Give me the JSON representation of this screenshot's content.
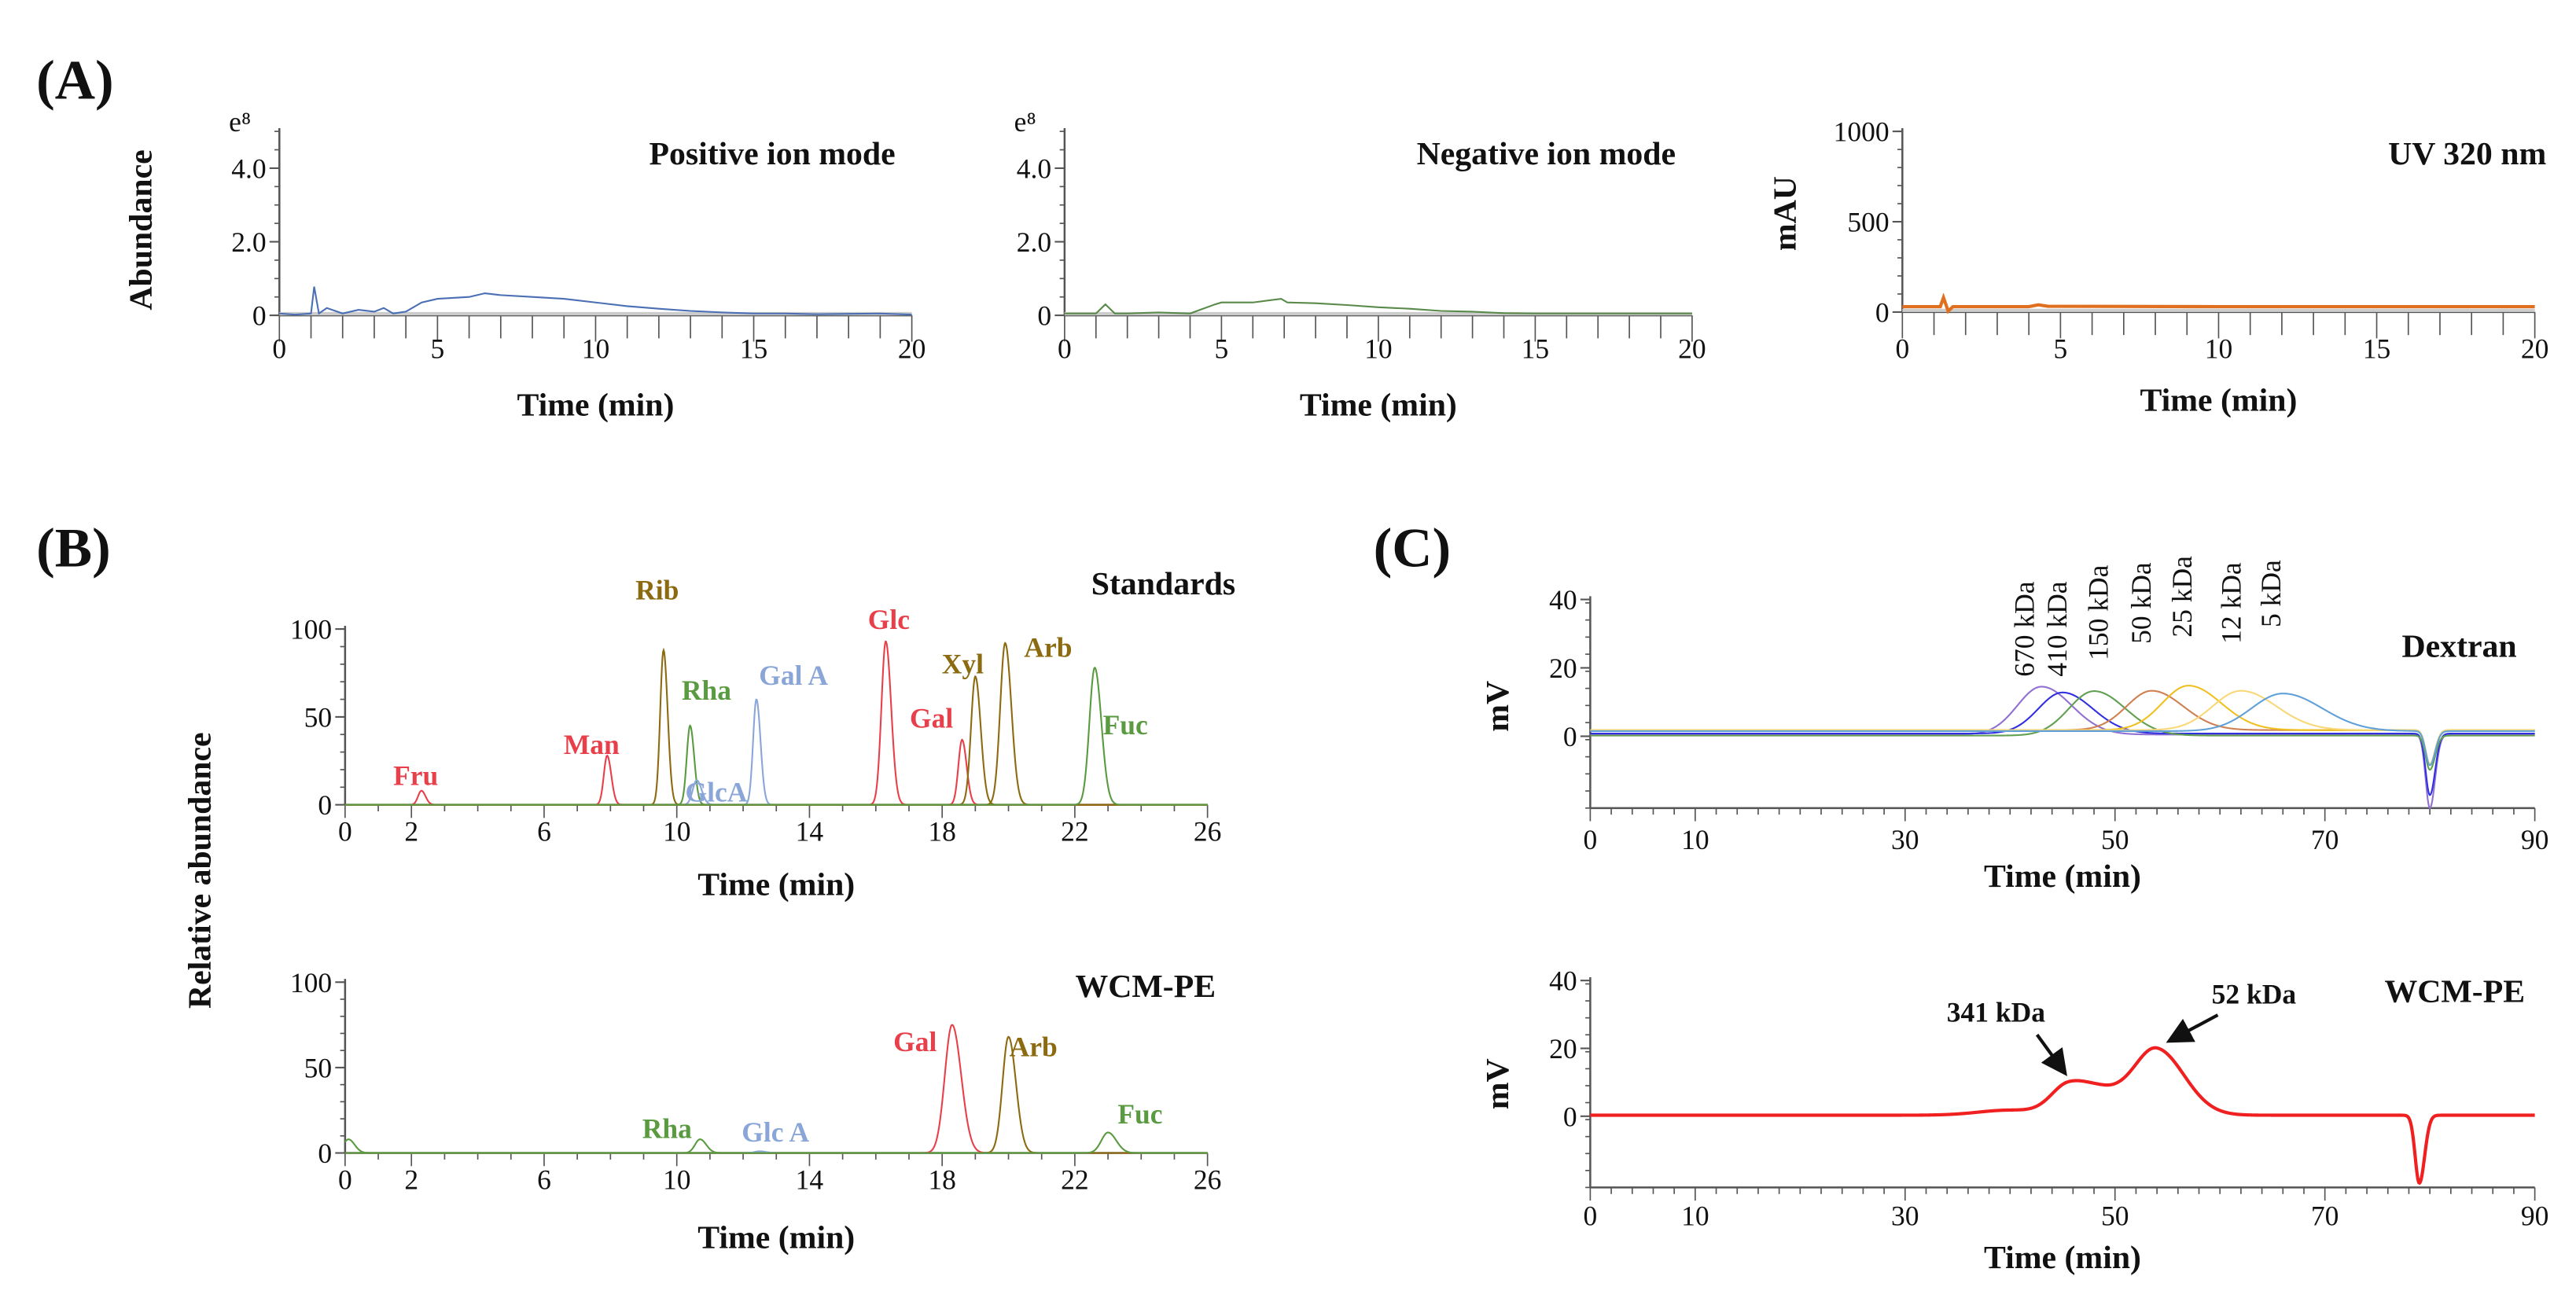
{
  "panel_labels": {
    "A": "(A)",
    "B": "(B)",
    "C": "(C)"
  },
  "chart_data": [
    {
      "id": "A1",
      "type": "line",
      "title": "Positive ion mode",
      "xlabel": "Time (min)",
      "ylabel": "Abundance",
      "y_multiplier": "e⁸",
      "xlim": [
        0,
        20
      ],
      "ylim": [
        0,
        5
      ],
      "xticks": [
        0,
        5,
        10,
        15,
        20
      ],
      "yticks": [
        0,
        2,
        4
      ],
      "ytick_labels": [
        "0",
        "2.0",
        "4.0"
      ],
      "grid": false,
      "series": [
        {
          "name": "Positive ion",
          "color": "#4a6fb5",
          "points": [
            [
              0,
              0.05
            ],
            [
              0.5,
              0.02
            ],
            [
              1.0,
              0.05
            ],
            [
              1.1,
              0.78
            ],
            [
              1.25,
              0.05
            ],
            [
              1.5,
              0.2
            ],
            [
              2,
              0.05
            ],
            [
              2.5,
              0.15
            ],
            [
              3,
              0.1
            ],
            [
              3.3,
              0.2
            ],
            [
              3.6,
              0.05
            ],
            [
              4,
              0.1
            ],
            [
              4.5,
              0.35
            ],
            [
              5,
              0.45
            ],
            [
              6,
              0.5
            ],
            [
              6.5,
              0.6
            ],
            [
              7,
              0.55
            ],
            [
              8,
              0.5
            ],
            [
              9,
              0.45
            ],
            [
              10,
              0.35
            ],
            [
              11,
              0.25
            ],
            [
              12,
              0.18
            ],
            [
              13,
              0.12
            ],
            [
              14,
              0.08
            ],
            [
              15,
              0.05
            ],
            [
              16,
              0.05
            ],
            [
              17,
              0.03
            ],
            [
              18,
              0.04
            ],
            [
              19,
              0.05
            ],
            [
              20,
              0.02
            ]
          ]
        }
      ]
    },
    {
      "id": "A2",
      "type": "line",
      "title": "Negative ion mode",
      "xlabel": "Time (min)",
      "ylabel": "",
      "y_multiplier": "e⁸",
      "xlim": [
        0,
        20
      ],
      "ylim": [
        0,
        5
      ],
      "xticks": [
        0,
        5,
        10,
        15,
        20
      ],
      "yticks": [
        0,
        2,
        4
      ],
      "ytick_labels": [
        "0",
        "2.0",
        "4.0"
      ],
      "grid": false,
      "series": [
        {
          "name": "Negative ion",
          "color": "#5a8a4a",
          "points": [
            [
              0,
              0.05
            ],
            [
              1.0,
              0.05
            ],
            [
              1.3,
              0.3
            ],
            [
              1.6,
              0.05
            ],
            [
              2,
              0.05
            ],
            [
              3,
              0.08
            ],
            [
              4,
              0.05
            ],
            [
              4.8,
              0.3
            ],
            [
              5,
              0.35
            ],
            [
              6,
              0.35
            ],
            [
              6.9,
              0.45
            ],
            [
              7.1,
              0.35
            ],
            [
              8,
              0.33
            ],
            [
              9,
              0.28
            ],
            [
              10,
              0.22
            ],
            [
              11,
              0.18
            ],
            [
              12,
              0.12
            ],
            [
              13,
              0.1
            ],
            [
              14,
              0.06
            ],
            [
              15,
              0.05
            ],
            [
              20,
              0.05
            ]
          ]
        }
      ]
    },
    {
      "id": "A3",
      "type": "line",
      "title": "UV 320 nm",
      "xlabel": "Time (min)",
      "ylabel": "mAU",
      "xlim": [
        0,
        20
      ],
      "ylim": [
        0,
        1000
      ],
      "xticks": [
        0,
        5,
        10,
        15,
        20
      ],
      "yticks": [
        0,
        500,
        1000
      ],
      "ytick_labels": [
        "0",
        "500",
        "1000"
      ],
      "grid": false,
      "series": [
        {
          "name": "UV 320 nm",
          "color": "#e07020",
          "points": [
            [
              0,
              30
            ],
            [
              1.2,
              30
            ],
            [
              1.3,
              80
            ],
            [
              1.45,
              5
            ],
            [
              1.6,
              30
            ],
            [
              4,
              30
            ],
            [
              4.3,
              40
            ],
            [
              4.6,
              32
            ],
            [
              10,
              30
            ],
            [
              20,
              30
            ]
          ]
        }
      ]
    },
    {
      "id": "B1",
      "type": "line",
      "title": "Standards",
      "xlabel": "Time (min)",
      "ylabel": "Relative abundance",
      "xlim": [
        0,
        26
      ],
      "ylim": [
        0,
        100
      ],
      "xticks": [
        0,
        2,
        6,
        10,
        14,
        18,
        22,
        26
      ],
      "yticks": [
        0,
        50,
        100
      ],
      "ytick_labels": [
        "0",
        "50",
        "100"
      ],
      "grid": false,
      "series": [
        {
          "label": "Fru",
          "color": "#e8404a",
          "peaks": [
            {
              "center": 2.3,
              "height": 8,
              "sigma": 0.1
            }
          ]
        },
        {
          "label": "Man",
          "color": "#e8404a",
          "peaks": [
            {
              "center": 7.9,
              "height": 28,
              "sigma": 0.1
            }
          ]
        },
        {
          "label": "Rib",
          "color": "#8b6a10",
          "peaks": [
            {
              "center": 9.6,
              "height": 88,
              "sigma": 0.1
            }
          ]
        },
        {
          "label": "Rha",
          "color": "#5a9a40",
          "peaks": [
            {
              "center": 10.4,
              "height": 45,
              "sigma": 0.1
            }
          ]
        },
        {
          "label": "GlcA",
          "color": "#8aa6d8",
          "peaks": [
            {
              "center": 10.6,
              "height": 14,
              "sigma": 0.12
            }
          ]
        },
        {
          "label": "Gal A",
          "color": "#8aa6d8",
          "peaks": [
            {
              "center": 12.4,
              "height": 60,
              "sigma": 0.1
            }
          ]
        },
        {
          "label": "Glc",
          "color": "#e8404a",
          "peaks": [
            {
              "center": 16.3,
              "height": 93,
              "sigma": 0.13
            }
          ]
        },
        {
          "label": "Gal",
          "color": "#e8404a",
          "peaks": [
            {
              "center": 18.6,
              "height": 37,
              "sigma": 0.11
            }
          ]
        },
        {
          "label": "Xyl",
          "color": "#8b6a10",
          "peaks": [
            {
              "center": 19.0,
              "height": 73,
              "sigma": 0.13
            }
          ]
        },
        {
          "label": "Arb",
          "color": "#8b6a10",
          "peaks": [
            {
              "center": 19.9,
              "height": 92,
              "sigma": 0.15
            }
          ]
        },
        {
          "label": "Fuc",
          "color": "#5a9a40",
          "peaks": [
            {
              "center": 22.6,
              "height": 78,
              "sigma": 0.16
            }
          ]
        }
      ]
    },
    {
      "id": "B2",
      "type": "line",
      "title": "WCM-PE",
      "xlabel": "Time (min)",
      "ylabel": "",
      "xlim": [
        0,
        26
      ],
      "ylim": [
        0,
        100
      ],
      "xticks": [
        0,
        2,
        6,
        10,
        14,
        18,
        22,
        26
      ],
      "yticks": [
        0,
        50,
        100
      ],
      "ytick_labels": [
        "0",
        "50",
        "100"
      ],
      "grid": false,
      "series": [
        {
          "label": "Rha",
          "color": "#5a9a40",
          "peaks": [
            {
              "center": 0.1,
              "height": 8,
              "sigma": 0.15
            },
            {
              "center": 10.7,
              "height": 8,
              "sigma": 0.15
            }
          ]
        },
        {
          "label": "Glc A",
          "color": "#8aa6d8",
          "peaks": [
            {
              "center": 12.5,
              "height": 1,
              "sigma": 0.15
            }
          ]
        },
        {
          "label": "Gal",
          "color": "#e8404a",
          "peaks": [
            {
              "center": 18.3,
              "height": 75,
              "sigma": 0.22
            }
          ]
        },
        {
          "label": "Arb",
          "color": "#8b6a10",
          "peaks": [
            {
              "center": 20.0,
              "height": 68,
              "sigma": 0.18
            }
          ]
        },
        {
          "label": "Fuc",
          "color": "#5a9a40",
          "peaks": [
            {
              "center": 23.0,
              "height": 12,
              "sigma": 0.2
            }
          ]
        }
      ]
    },
    {
      "id": "C1",
      "type": "line",
      "title": "Dextran",
      "xlabel": "Time (min)",
      "ylabel": "mV",
      "xlim": [
        0,
        90
      ],
      "ylim": [
        -21,
        40
      ],
      "xticks": [
        0,
        10,
        30,
        50,
        70,
        90
      ],
      "yticks": [
        0,
        20,
        40
      ],
      "ytick_labels": [
        "0",
        "20",
        "40"
      ],
      "grid": false,
      "series": [
        {
          "label": "670 kDa",
          "color": "#9070d0",
          "baseline": 0.5,
          "peaks": [
            {
              "center": 43,
              "height": 14,
              "sigma": 2.3
            },
            {
              "center": 80,
              "height": -21.5,
              "sigma": 0.4
            }
          ]
        },
        {
          "label": "410 kDa",
          "color": "#3030e0",
          "baseline": 0.8,
          "peaks": [
            {
              "center": 45,
              "height": 12,
              "sigma": 2.3
            },
            {
              "center": 80,
              "height": -18,
              "sigma": 0.4
            }
          ]
        },
        {
          "label": "150 kDa",
          "color": "#60a050",
          "baseline": 0.2,
          "peaks": [
            {
              "center": 48,
              "height": 13,
              "sigma": 2.4
            },
            {
              "center": 80,
              "height": -10,
              "sigma": 0.4
            }
          ]
        },
        {
          "label": "50 kDa",
          "color": "#d08050",
          "baseline": 1.8,
          "peaks": [
            {
              "center": 53.5,
              "height": 11.5,
              "sigma": 2.4
            },
            {
              "center": 80,
              "height": -10,
              "sigma": 0.4
            }
          ]
        },
        {
          "label": "25 kDa",
          "color": "#f0c020",
          "baseline": 1.8,
          "peaks": [
            {
              "center": 57,
              "height": 13,
              "sigma": 2.5
            },
            {
              "center": 80,
              "height": -10,
              "sigma": 0.4
            }
          ]
        },
        {
          "label": "12 kDa",
          "color": "#f8d878",
          "baseline": 1.8,
          "peaks": [
            {
              "center": 62,
              "height": 11.5,
              "sigma": 2.7
            },
            {
              "center": 80,
              "height": -10,
              "sigma": 0.4
            }
          ]
        },
        {
          "label": "5 kDa",
          "color": "#60a0d8",
          "baseline": 1.5,
          "peaks": [
            {
              "center": 66,
              "height": 11,
              "sigma": 3.0
            },
            {
              "center": 80,
              "height": -10,
              "sigma": 0.4
            }
          ]
        }
      ]
    },
    {
      "id": "C2",
      "type": "line",
      "title": "WCM-PE",
      "xlabel": "Time (min)",
      "ylabel": "mV",
      "xlim": [
        0,
        90
      ],
      "ylim": [
        -21,
        40
      ],
      "xticks": [
        0,
        10,
        30,
        50,
        70,
        90
      ],
      "yticks": [
        0,
        20,
        40
      ],
      "ytick_labels": [
        "0",
        "20",
        "40"
      ],
      "grid": false,
      "series": [
        {
          "label": "WCM-PE",
          "color": "#f02020",
          "baseline": 0.3,
          "peaks": [
            {
              "center": 40,
              "height": 1.5,
              "sigma": 3
            },
            {
              "center": 45.5,
              "height": 8,
              "sigma": 1.6
            },
            {
              "center": 49,
              "height": 6,
              "sigma": 2
            },
            {
              "center": 54,
              "height": 19,
              "sigma": 2.1
            },
            {
              "center": 79,
              "height": -20,
              "sigma": 0.4
            }
          ]
        }
      ],
      "annotations": [
        {
          "text": "341 kDa",
          "x": 45
        },
        {
          "text": "52 kDa",
          "x": 54
        }
      ]
    }
  ]
}
